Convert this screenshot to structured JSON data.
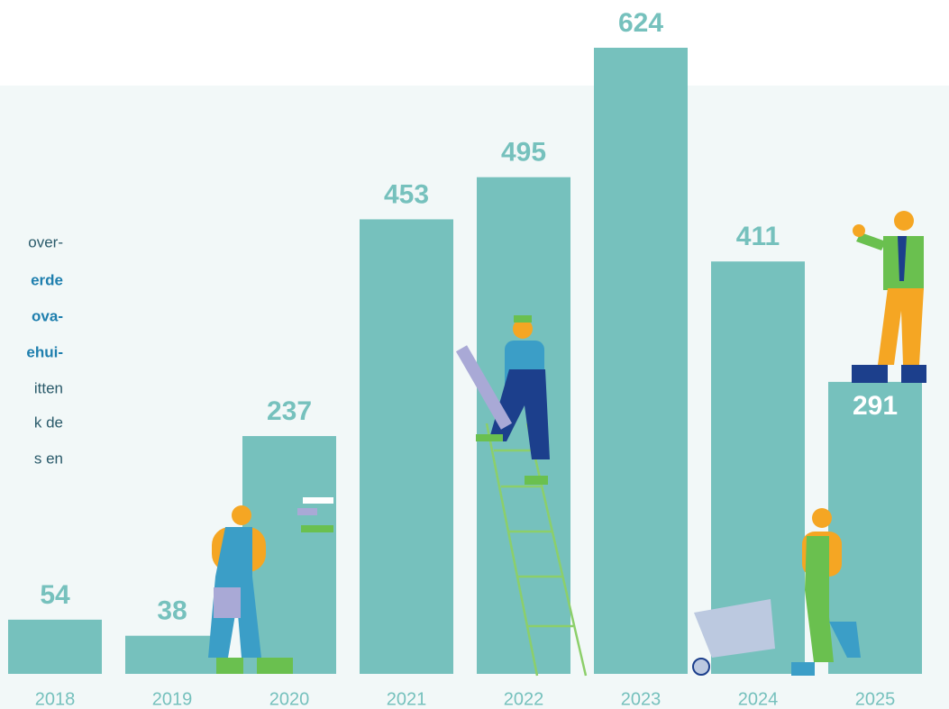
{
  "chart_data": {
    "type": "bar",
    "categories": [
      "2018",
      "2019",
      "2020",
      "2021",
      "2022",
      "2023",
      "2024",
      "2025"
    ],
    "values": [
      54,
      38,
      237,
      453,
      495,
      624,
      411,
      291
    ],
    "color": "#76c1bd"
  },
  "side_text": [
    {
      "text": "over-",
      "bold": false
    },
    {
      "text": "erde",
      "bold": true
    },
    {
      "text": "ova-",
      "bold": true
    },
    {
      "text": "ehui-",
      "bold": true
    },
    {
      "text": "itten",
      "bold": false
    },
    {
      "text": "k de",
      "bold": false
    },
    {
      "text": "s en",
      "bold": false
    }
  ]
}
